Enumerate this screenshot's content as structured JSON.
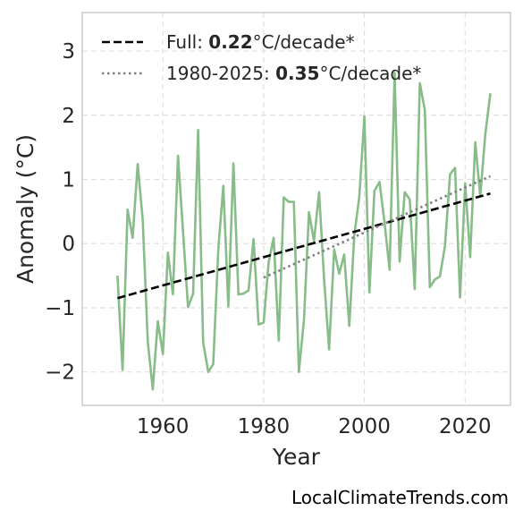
{
  "chart_data": {
    "type": "line",
    "xlabel": "Year",
    "ylabel": "Anomaly (°C)",
    "xlim": [
      1944,
      2029
    ],
    "ylim": [
      -2.52,
      3.6
    ],
    "x_ticks": [
      1960,
      1980,
      2000,
      2020
    ],
    "y_ticks": [
      -2,
      -1,
      0,
      1,
      2,
      3
    ],
    "y_tick_labels": [
      "−2",
      "−1",
      "0",
      "1",
      "2",
      "3"
    ],
    "grid": true,
    "legend_position": "top-left",
    "colors": {
      "series": "#88bc88",
      "trend_full": "#000000",
      "trend_recent": "#808080",
      "grid": "#e0e0e0",
      "frame": "#cccccc"
    },
    "series": [
      {
        "x": [
          1951,
          1952,
          1953,
          1954,
          1955,
          1956,
          1957,
          1958,
          1959,
          1960,
          1961,
          1962,
          1963,
          1964,
          1965,
          1966,
          1967,
          1968,
          1969,
          1970,
          1971,
          1972,
          1973,
          1974,
          1975,
          1976,
          1977,
          1978,
          1979,
          1980,
          1981,
          1982,
          1983,
          1984,
          1985,
          1986,
          1987,
          1988,
          1989,
          1990,
          1991,
          1992,
          1993,
          1994,
          1995,
          1996,
          1997,
          1998,
          1999,
          2000,
          2001,
          2002,
          2003,
          2004,
          2005,
          2006,
          2007,
          2008,
          2009,
          2010,
          2011,
          2012,
          2013,
          2014,
          2015,
          2016,
          2017,
          2018,
          2019,
          2020,
          2021,
          2022,
          2023,
          2024,
          2025
        ],
        "y": [
          -0.5,
          -1.97,
          0.53,
          0.09,
          1.24,
          0.38,
          -1.53,
          -2.27,
          -1.21,
          -1.72,
          -0.14,
          -0.79,
          1.37,
          0.19,
          -0.99,
          -0.78,
          1.77,
          -1.53,
          -2.0,
          -1.88,
          -0.08,
          0.9,
          -0.98,
          1.25,
          -0.79,
          -0.78,
          -0.73,
          0.07,
          -1.26,
          -1.23,
          -0.29,
          0.09,
          -1.51,
          0.72,
          0.65,
          0.65,
          -2.0,
          -1.19,
          0.49,
          0.04,
          0.8,
          -0.55,
          -1.65,
          -0.09,
          -0.47,
          -0.17,
          -1.28,
          0.13,
          0.73,
          1.98,
          -0.76,
          0.82,
          0.96,
          0.33,
          -0.41,
          2.66,
          -0.28,
          0.8,
          0.69,
          -0.71,
          2.5,
          2.08,
          -0.68,
          -0.56,
          -0.51,
          -0.04,
          1.08,
          1.18,
          -0.84,
          0.94,
          -0.21,
          1.58,
          0.74,
          1.7,
          2.34
        ]
      }
    ],
    "trend_full": {
      "x": [
        1951,
        2025
      ],
      "y": [
        -0.85,
        0.78
      ]
    },
    "trend_recent": {
      "x": [
        1980,
        2025
      ],
      "y": [
        -0.53,
        1.05
      ]
    },
    "legend": [
      {
        "style": "dashed",
        "prefix": "Full: ",
        "value": "0.22",
        "suffix": "°C/decade*"
      },
      {
        "style": "dotted",
        "prefix": "1980-2025: ",
        "value": "0.35",
        "suffix": "°C/decade*"
      }
    ]
  },
  "watermark": "LocalClimateTrends.com"
}
